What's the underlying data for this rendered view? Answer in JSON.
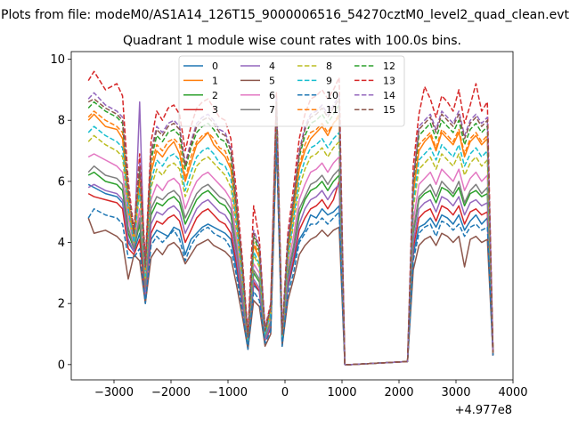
{
  "chart_data": {
    "type": "line",
    "suptitle": "Plots from file: modeM0/AS1A14_126T15_9000006516_54270cztM0_level2_quad_clean.evt",
    "title": "Quadrant 1 module wise count rates with 100.0s bins.",
    "xlabel": "",
    "ylabel": "",
    "x_offset_label": "+4.977e8",
    "xlim": [
      -3750,
      4000
    ],
    "ylim": [
      -0.5,
      10.25
    ],
    "xticks": [
      -3000,
      -2000,
      -1000,
      0,
      1000,
      2000,
      3000,
      4000
    ],
    "xtick_labels": [
      "−3000",
      "−2000",
      "−1000",
      "0",
      "1000",
      "2000",
      "3000",
      "4000"
    ],
    "yticks": [
      0,
      2,
      4,
      6,
      8,
      10
    ],
    "ytick_labels": [
      "0",
      "2",
      "4",
      "6",
      "8",
      "10"
    ],
    "legend_columns": 4,
    "legend_position": "top-center",
    "x": [
      -3450,
      -3350,
      -3150,
      -2950,
      -2850,
      -2750,
      -2650,
      -2550,
      -2450,
      -2350,
      -2250,
      -2150,
      -2050,
      -1950,
      -1850,
      -1750,
      -1650,
      -1550,
      -1450,
      -1350,
      -1250,
      -1150,
      -1050,
      -950,
      -850,
      -750,
      -650,
      -550,
      -450,
      -350,
      -250,
      -150,
      -50,
      50,
      150,
      250,
      350,
      450,
      550,
      650,
      750,
      850,
      950,
      1050,
      1150,
      2150,
      2250,
      2350,
      2450,
      2550,
      2650,
      2750,
      2850,
      2950,
      3050,
      3150,
      3250,
      3350,
      3450,
      3550,
      3650
    ],
    "series": [
      {
        "name": "0",
        "color": "#1f77b4",
        "dash": "solid",
        "values": [
          5.9,
          5.8,
          5.6,
          5.5,
          5.3,
          4.0,
          3.7,
          4.3,
          2.3,
          4.1,
          4.4,
          4.3,
          4.2,
          4.5,
          4.4,
          3.6,
          4.1,
          4.3,
          4.5,
          4.6,
          4.5,
          4.4,
          4.3,
          4.1,
          3.1,
          2.0,
          0.6,
          2.6,
          2.4,
          0.8,
          1.2,
          7.9,
          0.7,
          2.5,
          3.3,
          4.1,
          4.4,
          4.9,
          4.8,
          5.1,
          4.9,
          5.0,
          5.2,
          0.0,
          0.0,
          0.1,
          3.6,
          4.5,
          4.6,
          4.8,
          4.5,
          4.9,
          4.8,
          4.6,
          4.9,
          4.4,
          4.7,
          4.9,
          4.6,
          4.8,
          0.3
        ]
      },
      {
        "name": "1",
        "color": "#ff7f0e",
        "dash": "solid",
        "values": [
          8.0,
          8.2,
          7.8,
          7.7,
          7.4,
          5.2,
          4.1,
          6.0,
          3.1,
          6.3,
          7.0,
          6.8,
          7.1,
          7.3,
          6.9,
          6.0,
          6.6,
          7.2,
          7.4,
          7.6,
          7.2,
          7.0,
          6.8,
          6.4,
          4.8,
          3.0,
          0.9,
          3.9,
          3.5,
          1.1,
          1.8,
          8.5,
          1.0,
          3.7,
          5.0,
          6.4,
          7.0,
          7.4,
          7.6,
          7.8,
          7.5,
          7.9,
          8.1,
          0.0,
          0.0,
          0.1,
          5.6,
          7.0,
          7.3,
          7.5,
          7.0,
          7.6,
          7.4,
          7.2,
          7.6,
          6.8,
          7.3,
          7.5,
          7.2,
          7.4,
          0.4
        ]
      },
      {
        "name": "2",
        "color": "#2ca02c",
        "dash": "solid",
        "values": [
          6.2,
          6.3,
          6.0,
          5.9,
          5.7,
          4.3,
          3.8,
          4.6,
          2.4,
          4.9,
          5.3,
          5.2,
          5.4,
          5.5,
          5.3,
          4.6,
          5.0,
          5.4,
          5.6,
          5.7,
          5.5,
          5.3,
          5.2,
          4.9,
          3.7,
          2.3,
          0.7,
          3.0,
          2.7,
          0.9,
          1.4,
          8.0,
          0.8,
          2.9,
          3.8,
          4.9,
          5.4,
          5.7,
          5.8,
          6.0,
          5.7,
          6.0,
          6.2,
          0.0,
          0.0,
          0.1,
          4.3,
          5.4,
          5.6,
          5.7,
          5.3,
          5.8,
          5.7,
          5.5,
          5.8,
          5.2,
          5.6,
          5.7,
          5.5,
          5.6,
          0.3
        ]
      },
      {
        "name": "3",
        "color": "#d62728",
        "dash": "solid",
        "values": [
          5.6,
          5.5,
          5.4,
          5.3,
          5.1,
          3.8,
          3.6,
          4.1,
          2.2,
          4.3,
          4.7,
          4.6,
          4.8,
          4.9,
          4.7,
          4.0,
          4.4,
          4.8,
          5.0,
          5.1,
          4.9,
          4.7,
          4.6,
          4.3,
          3.3,
          2.1,
          0.6,
          2.7,
          2.4,
          0.8,
          1.2,
          7.6,
          0.7,
          2.6,
          3.4,
          4.4,
          4.8,
          5.1,
          5.2,
          5.4,
          5.1,
          5.4,
          6.0,
          0.0,
          0.0,
          0.1,
          3.8,
          4.8,
          5.0,
          5.1,
          4.7,
          5.2,
          5.1,
          4.9,
          5.2,
          4.6,
          5.0,
          5.1,
          4.9,
          5.0,
          0.3
        ]
      },
      {
        "name": "4",
        "color": "#9467bd",
        "dash": "solid",
        "values": [
          5.8,
          5.9,
          5.7,
          5.6,
          5.4,
          4.1,
          3.7,
          8.6,
          2.3,
          4.6,
          5.0,
          4.9,
          5.1,
          5.2,
          5.0,
          4.3,
          4.7,
          5.1,
          5.3,
          5.4,
          5.2,
          5.0,
          4.9,
          4.6,
          3.5,
          2.2,
          0.6,
          2.8,
          2.5,
          0.8,
          1.3,
          7.7,
          0.7,
          2.7,
          3.6,
          4.6,
          5.1,
          5.4,
          5.5,
          5.7,
          5.4,
          5.7,
          5.9,
          0.0,
          0.0,
          0.1,
          4.0,
          5.1,
          5.3,
          5.4,
          5.0,
          5.5,
          5.4,
          5.2,
          5.5,
          4.9,
          5.3,
          5.4,
          5.2,
          5.3,
          0.3
        ]
      },
      {
        "name": "5",
        "color": "#8c564b",
        "dash": "solid",
        "values": [
          4.8,
          4.3,
          4.4,
          4.2,
          4.0,
          2.8,
          3.6,
          3.4,
          2.0,
          3.5,
          3.8,
          3.6,
          3.9,
          4.0,
          3.8,
          3.3,
          3.6,
          3.9,
          4.0,
          4.1,
          3.9,
          3.8,
          3.7,
          3.5,
          2.6,
          1.6,
          0.5,
          2.1,
          1.9,
          0.6,
          1.0,
          7.3,
          0.6,
          2.1,
          2.8,
          3.6,
          3.9,
          4.1,
          4.2,
          4.4,
          4.2,
          4.4,
          4.5,
          0.0,
          0.0,
          0.1,
          3.1,
          3.9,
          4.1,
          4.2,
          3.9,
          4.3,
          4.2,
          4.0,
          4.2,
          3.2,
          4.1,
          4.2,
          4.0,
          4.1,
          0.3
        ]
      },
      {
        "name": "6",
        "color": "#e377c2",
        "dash": "solid",
        "values": [
          6.8,
          6.9,
          6.7,
          6.5,
          6.3,
          4.8,
          3.9,
          5.1,
          2.6,
          5.4,
          5.9,
          5.7,
          6.0,
          6.1,
          5.9,
          5.1,
          5.6,
          6.0,
          6.2,
          6.3,
          6.1,
          5.9,
          5.7,
          5.4,
          4.1,
          2.6,
          0.7,
          3.3,
          3.0,
          0.9,
          1.5,
          8.1,
          0.8,
          3.2,
          4.2,
          5.4,
          5.9,
          6.3,
          6.4,
          6.6,
          6.3,
          6.6,
          6.8,
          0.0,
          0.0,
          0.1,
          4.7,
          5.9,
          6.1,
          6.3,
          5.9,
          6.4,
          6.2,
          6.0,
          6.4,
          5.7,
          6.1,
          6.3,
          6.0,
          6.2,
          0.3
        ]
      },
      {
        "name": "7",
        "color": "#7f7f7f",
        "dash": "solid",
        "values": [
          6.3,
          6.5,
          6.2,
          6.1,
          5.9,
          4.5,
          3.8,
          4.8,
          2.5,
          5.1,
          5.5,
          5.4,
          5.6,
          5.7,
          5.5,
          4.8,
          5.2,
          5.6,
          5.8,
          5.9,
          5.7,
          5.5,
          5.4,
          5.1,
          3.8,
          2.4,
          0.7,
          3.1,
          2.8,
          0.9,
          1.4,
          7.9,
          0.8,
          3.0,
          3.9,
          5.1,
          5.5,
          5.9,
          6.0,
          6.2,
          5.9,
          6.2,
          6.4,
          0.0,
          0.0,
          0.1,
          4.4,
          5.5,
          5.7,
          5.9,
          5.5,
          6.0,
          5.8,
          5.6,
          6.0,
          5.3,
          5.7,
          5.9,
          5.6,
          5.8,
          0.3
        ]
      },
      {
        "name": "8",
        "color": "#bcbd22",
        "dash": "dashed",
        "values": [
          7.3,
          7.5,
          7.2,
          7.0,
          6.8,
          5.0,
          4.0,
          5.6,
          2.8,
          5.8,
          6.4,
          6.2,
          6.5,
          6.6,
          6.4,
          5.5,
          6.0,
          6.5,
          6.7,
          6.8,
          6.6,
          6.4,
          6.2,
          5.8,
          4.4,
          2.8,
          0.8,
          3.6,
          3.2,
          1.0,
          1.6,
          8.3,
          0.9,
          3.4,
          4.6,
          5.8,
          6.4,
          6.8,
          6.9,
          7.1,
          6.8,
          7.1,
          7.3,
          0.0,
          0.0,
          0.1,
          5.1,
          6.4,
          6.6,
          6.8,
          6.4,
          6.9,
          6.7,
          6.5,
          6.9,
          6.2,
          6.6,
          6.8,
          6.5,
          6.7,
          0.4
        ]
      },
      {
        "name": "9",
        "color": "#17becf",
        "dash": "dashed",
        "values": [
          7.6,
          7.8,
          7.5,
          7.3,
          7.1,
          5.1,
          4.0,
          5.8,
          2.9,
          6.0,
          6.7,
          6.5,
          6.8,
          6.9,
          6.7,
          5.7,
          6.3,
          6.8,
          7.0,
          7.1,
          6.9,
          6.6,
          6.5,
          6.1,
          4.6,
          2.9,
          0.8,
          3.7,
          3.3,
          1.0,
          1.7,
          8.4,
          0.9,
          3.5,
          4.8,
          6.1,
          6.7,
          7.1,
          7.2,
          7.4,
          7.1,
          7.4,
          7.6,
          0.0,
          0.0,
          0.1,
          5.3,
          6.7,
          6.9,
          7.1,
          6.7,
          7.2,
          7.0,
          6.8,
          7.2,
          6.5,
          6.9,
          7.1,
          6.8,
          7.0,
          0.4
        ]
      },
      {
        "name": "10",
        "color": "#1f77b4",
        "dash": "dashed",
        "values": [
          4.8,
          5.1,
          4.9,
          4.8,
          4.6,
          3.5,
          3.5,
          3.8,
          2.0,
          3.9,
          4.2,
          4.0,
          4.2,
          4.4,
          4.1,
          3.4,
          3.9,
          4.2,
          4.4,
          4.5,
          4.3,
          4.2,
          4.1,
          3.8,
          2.9,
          1.8,
          0.5,
          2.4,
          2.1,
          0.7,
          1.1,
          7.4,
          0.6,
          2.3,
          3.0,
          4.0,
          4.3,
          4.6,
          4.6,
          4.8,
          4.6,
          4.8,
          5.0,
          0.0,
          0.0,
          0.1,
          3.4,
          4.3,
          4.5,
          4.6,
          4.2,
          4.7,
          4.6,
          4.4,
          4.6,
          4.2,
          4.5,
          4.6,
          4.4,
          4.5,
          0.3
        ]
      },
      {
        "name": "11",
        "color": "#ff7f0e",
        "dash": "dashed",
        "values": [
          8.1,
          8.3,
          8.0,
          7.8,
          7.6,
          5.4,
          4.2,
          6.2,
          3.1,
          6.5,
          7.2,
          7.0,
          7.3,
          7.4,
          7.2,
          6.1,
          6.8,
          7.3,
          7.5,
          7.6,
          7.4,
          7.1,
          7.0,
          6.5,
          4.9,
          3.1,
          0.9,
          4.0,
          3.6,
          1.1,
          1.8,
          8.6,
          1.0,
          3.8,
          5.1,
          6.5,
          7.2,
          7.6,
          7.7,
          7.9,
          7.6,
          7.9,
          8.2,
          0.0,
          0.0,
          0.1,
          5.7,
          7.2,
          7.4,
          7.6,
          7.1,
          7.7,
          7.5,
          7.3,
          7.7,
          6.9,
          7.4,
          7.6,
          7.3,
          7.5,
          0.4
        ]
      },
      {
        "name": "12",
        "color": "#2ca02c",
        "dash": "dashed",
        "values": [
          8.4,
          8.6,
          8.3,
          8.1,
          7.9,
          5.6,
          4.3,
          6.4,
          3.2,
          6.7,
          7.5,
          7.3,
          7.6,
          7.7,
          7.5,
          6.4,
          7.1,
          7.6,
          7.8,
          7.9,
          7.7,
          7.4,
          7.3,
          6.8,
          5.1,
          3.2,
          0.9,
          4.2,
          3.7,
          1.1,
          1.9,
          8.7,
          1.0,
          3.9,
          5.3,
          6.8,
          7.5,
          7.9,
          8.0,
          8.2,
          7.9,
          8.2,
          8.5,
          0.0,
          0.0,
          0.1,
          5.9,
          7.5,
          7.7,
          7.9,
          7.4,
          8.0,
          7.8,
          7.6,
          8.0,
          7.2,
          7.7,
          7.9,
          7.6,
          7.8,
          0.4
        ]
      },
      {
        "name": "13",
        "color": "#d62728",
        "dash": "dashed",
        "values": [
          9.3,
          9.6,
          9.0,
          9.2,
          8.8,
          6.0,
          4.4,
          6.9,
          3.4,
          7.3,
          8.3,
          8.0,
          8.4,
          8.5,
          8.2,
          7.0,
          7.8,
          8.4,
          8.6,
          8.7,
          8.4,
          8.1,
          8.0,
          7.4,
          5.6,
          3.5,
          1.0,
          5.2,
          4.1,
          1.2,
          2.0,
          8.9,
          1.1,
          4.3,
          5.8,
          7.4,
          8.2,
          8.7,
          8.8,
          9.0,
          8.7,
          9.0,
          9.4,
          0.0,
          0.0,
          0.1,
          6.5,
          8.2,
          9.1,
          8.7,
          8.1,
          8.8,
          8.6,
          8.3,
          9.0,
          7.9,
          8.5,
          9.2,
          8.3,
          8.6,
          0.4
        ]
      },
      {
        "name": "14",
        "color": "#9467bd",
        "dash": "dashed",
        "values": [
          8.7,
          8.9,
          8.5,
          8.3,
          8.1,
          5.8,
          4.3,
          6.6,
          3.3,
          7.0,
          7.8,
          7.6,
          7.9,
          8.0,
          7.8,
          6.6,
          7.3,
          7.9,
          8.1,
          8.2,
          8.0,
          7.7,
          7.6,
          7.1,
          5.3,
          3.3,
          0.9,
          4.4,
          3.9,
          1.2,
          1.9,
          8.7,
          1.0,
          4.1,
          5.5,
          7.0,
          7.8,
          8.2,
          8.3,
          8.5,
          8.2,
          8.5,
          8.8,
          0.0,
          0.0,
          0.1,
          6.1,
          7.8,
          8.0,
          8.2,
          7.7,
          8.3,
          8.1,
          7.9,
          8.3,
          7.5,
          8.0,
          8.2,
          7.9,
          8.1,
          0.4
        ]
      },
      {
        "name": "15",
        "color": "#8c564b",
        "dash": "dashed",
        "values": [
          8.6,
          8.7,
          8.4,
          8.2,
          8.0,
          5.7,
          4.3,
          6.5,
          3.2,
          6.9,
          7.7,
          7.5,
          7.8,
          7.9,
          7.7,
          6.5,
          7.2,
          7.8,
          8.0,
          8.1,
          7.9,
          7.6,
          7.5,
          7.0,
          5.2,
          3.3,
          0.9,
          4.3,
          3.8,
          1.1,
          1.9,
          8.6,
          1.0,
          4.0,
          5.4,
          6.9,
          7.7,
          8.1,
          8.2,
          8.4,
          8.1,
          8.4,
          8.7,
          0.0,
          0.0,
          0.1,
          6.0,
          7.7,
          7.9,
          8.1,
          7.6,
          8.2,
          8.0,
          7.8,
          8.2,
          7.4,
          7.9,
          8.1,
          7.8,
          8.0,
          0.4
        ]
      }
    ]
  }
}
